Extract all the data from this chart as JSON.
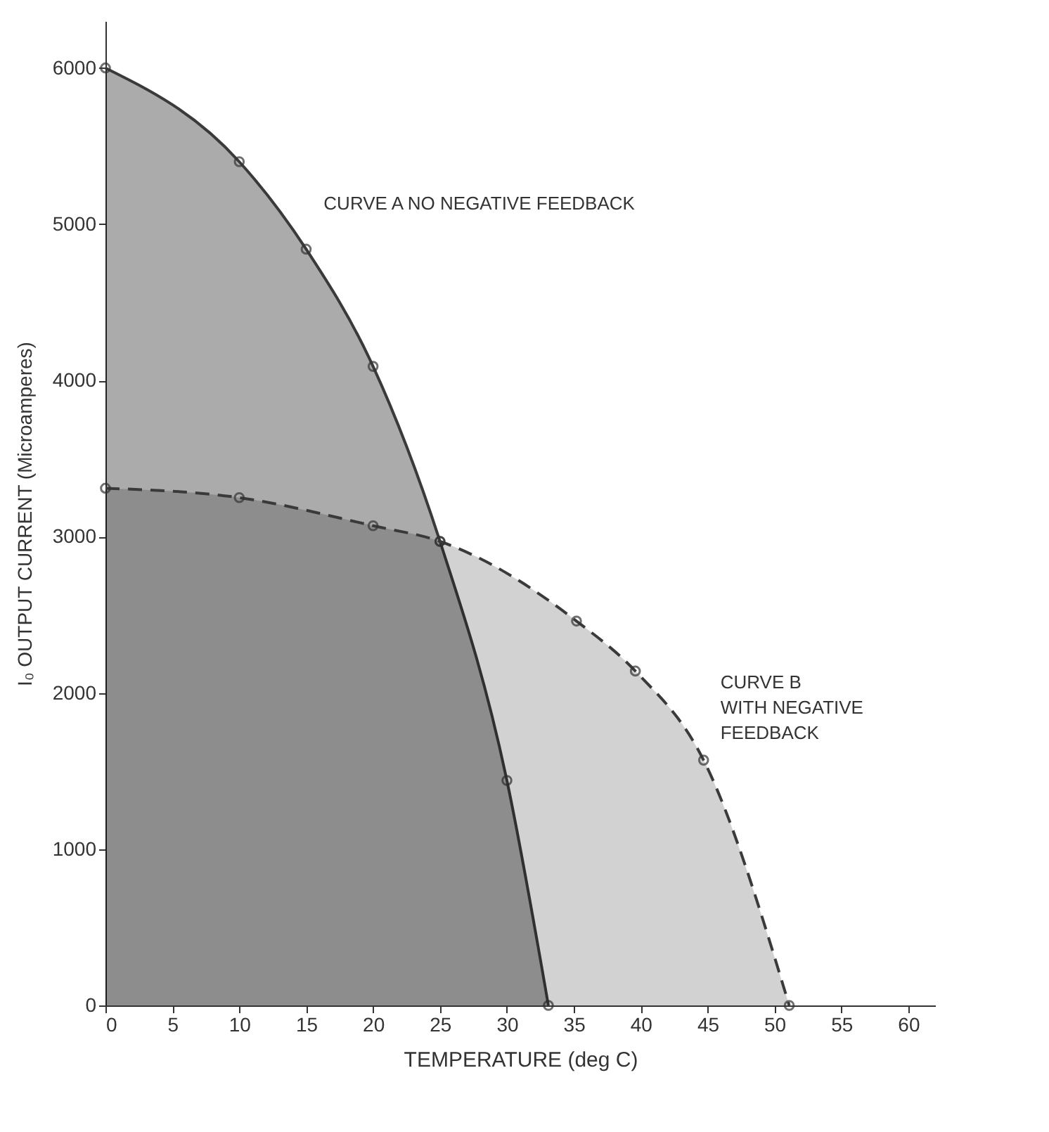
{
  "chart_data": {
    "type": "area",
    "xlabel": "TEMPERATURE     (deg C)",
    "ylabel": "I₀ OUTPUT CURRENT (Microamperes)",
    "xlim": [
      0,
      62
    ],
    "ylim": [
      0,
      6300
    ],
    "xticks": [
      0,
      5,
      10,
      15,
      20,
      25,
      30,
      35,
      40,
      45,
      50,
      55,
      60
    ],
    "yticks": [
      0,
      1000,
      2000,
      3000,
      4000,
      5000,
      6000
    ],
    "grid": false,
    "marker": "circle",
    "series": [
      {
        "name": "CURVE A  NO NEGATIVE FEEDBACK",
        "color": "#ababab",
        "line_style": "solid",
        "x": [
          0,
          10,
          15,
          20,
          25,
          30,
          33.1
        ],
        "values": [
          6000,
          5400,
          4840,
          4090,
          2970,
          1440,
          0
        ]
      },
      {
        "name": "CURVE B WITH NEGATIVE FEEDBACK",
        "color": "#d2d2d2",
        "line_style": "dashed",
        "x": [
          0,
          10,
          20,
          25,
          35.2,
          39.6,
          44.7,
          51.1
        ],
        "values": [
          3310,
          3250,
          3070,
          2970,
          2460,
          2140,
          1570,
          0
        ]
      }
    ]
  }
}
